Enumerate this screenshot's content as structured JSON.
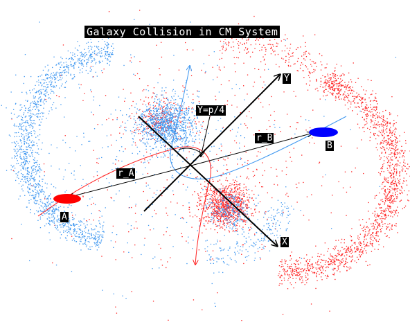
{
  "title": "Galaxy Collision in CM System",
  "labels": {
    "y_axis": "Y",
    "x_axis": "X",
    "angle": "Y=p/4",
    "r_a": "r_A",
    "r_b": "r_B",
    "galaxy_a": "A",
    "galaxy_b": "B"
  },
  "colors": {
    "galaxy_a": "#ff0000",
    "galaxy_b": "#0000ff",
    "stars_a": "#ff2020",
    "stars_b": "#3c96f0",
    "axes": "#000000"
  }
}
